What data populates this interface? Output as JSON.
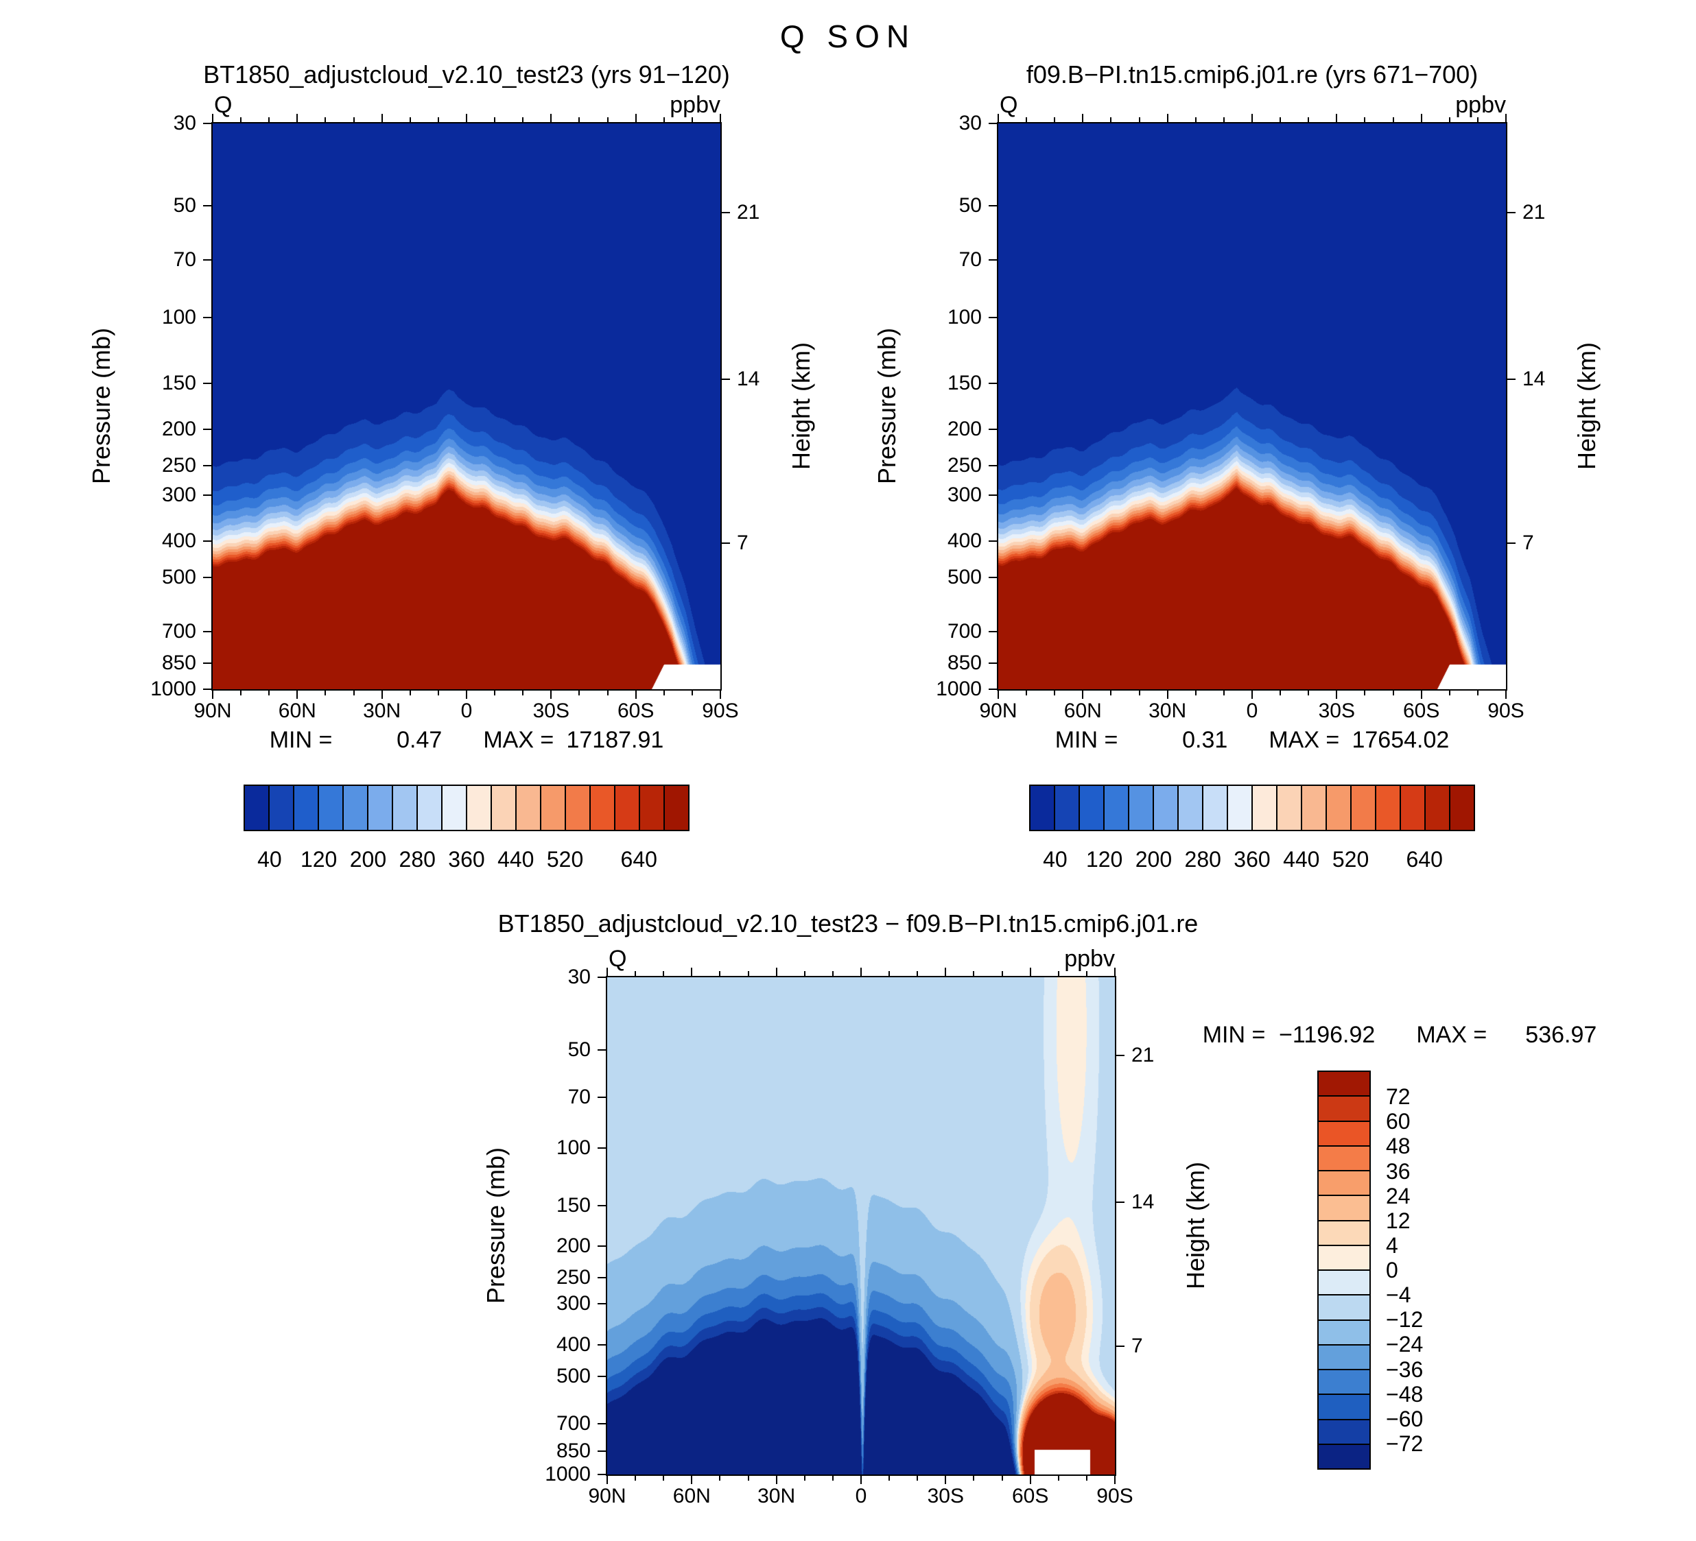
{
  "page": {
    "title": "Q SON"
  },
  "axes_shared": {
    "pressure_label": "Pressure (mb)",
    "height_label": "Height (km)",
    "field_label": "Q",
    "units_label": "ppbv",
    "pressure_ticks": [
      "30",
      "50",
      "70",
      "100",
      "150",
      "200",
      "250",
      "300",
      "400",
      "500",
      "700",
      "850",
      "1000"
    ],
    "height_ticks": [
      {
        "v": "21",
        "pf": 0.157
      },
      {
        "v": "14",
        "pf": 0.452
      },
      {
        "v": "7",
        "pf": 0.742
      }
    ],
    "lat_ticks": [
      "90N",
      "60N",
      "30N",
      "0",
      "30S",
      "60S",
      "90S"
    ]
  },
  "palettes": {
    "q": [
      "#0a2a9c",
      "#1544b4",
      "#1f5ecb",
      "#3578d8",
      "#5592e2",
      "#7bacec",
      "#a2c6f2",
      "#c8def8",
      "#e8f1fb",
      "#fdeada",
      "#fbd3b6",
      "#f9b891",
      "#f69a6a",
      "#f27b49",
      "#e95828",
      "#d63b16",
      "#b82507",
      "#a01601"
    ],
    "diff": [
      "#0b2384",
      "#143fa6",
      "#1f5fc0",
      "#3c7fd0",
      "#63a0dc",
      "#8fbfe8",
      "#bcd9f1",
      "#dcebf7",
      "#fdeedd",
      "#fcd9b8",
      "#fbbe92",
      "#f89e6b",
      "#f47c48",
      "#ea5526",
      "#cc3914",
      "#a11803"
    ]
  },
  "chart_data": [
    {
      "type": "filled-contour",
      "position": "top-left",
      "title": "BT1850_adjustcloud_v2.10_test23 (yrs 91−120)",
      "field_label": "Q",
      "units": "ppbv",
      "x_axis": {
        "ticks": [
          "90N",
          "60N",
          "30N",
          "0",
          "30S",
          "60S",
          "90S"
        ]
      },
      "y_axis": {
        "label": "Pressure (mb)",
        "scale": "log",
        "range": [
          30,
          1000
        ],
        "ticks": [
          30,
          50,
          70,
          100,
          150,
          200,
          250,
          300,
          400,
          500,
          700,
          850,
          1000
        ]
      },
      "y2_axis": {
        "label": "Height (km)",
        "ticks": [
          21,
          14,
          7
        ]
      },
      "stats": {
        "min_label": "MIN =",
        "min": "0.47",
        "max_label": "MAX =",
        "max": "17187.91"
      },
      "colorbar": {
        "orientation": "horizontal",
        "levels": [
          40,
          80,
          120,
          160,
          200,
          240,
          280,
          320,
          360,
          400,
          440,
          480,
          520,
          560,
          600,
          640,
          680
        ],
        "labels": [
          {
            "text": "40",
            "i": 0
          },
          {
            "text": "120",
            "i": 2
          },
          {
            "text": "200",
            "i": 4
          },
          {
            "text": "280",
            "i": 6
          },
          {
            "text": "360",
            "i": 8
          },
          {
            "text": "440",
            "i": 10
          },
          {
            "text": "520",
            "i": 12
          },
          {
            "text": "640",
            "i": 15
          }
        ]
      },
      "approx_red_top_boundary_pf": [
        [
          0,
          0.78
        ],
        [
          0.09,
          0.768
        ],
        [
          0.167,
          0.752
        ],
        [
          0.24,
          0.726
        ],
        [
          0.3,
          0.706
        ],
        [
          0.33,
          0.702
        ],
        [
          0.37,
          0.696
        ],
        [
          0.41,
          0.69
        ],
        [
          0.44,
          0.676
        ],
        [
          0.465,
          0.649
        ],
        [
          0.475,
          0.646
        ],
        [
          0.5,
          0.67
        ],
        [
          0.55,
          0.696
        ],
        [
          0.6,
          0.712
        ],
        [
          0.667,
          0.734
        ],
        [
          0.72,
          0.752
        ],
        [
          0.78,
          0.782
        ],
        [
          0.83,
          0.818
        ],
        [
          0.87,
          0.858
        ],
        [
          0.905,
          0.918
        ],
        [
          0.932,
          0.998
        ],
        [
          0.96,
          1.1
        ],
        [
          1.0,
          1.24
        ]
      ]
    },
    {
      "type": "filled-contour",
      "position": "top-right",
      "title": "f09.B−PI.tn15.cmip6.j01.re (yrs 671−700)",
      "field_label": "Q",
      "units": "ppbv",
      "x_axis": {
        "ticks": [
          "90N",
          "60N",
          "30N",
          "0",
          "30S",
          "60S",
          "90S"
        ]
      },
      "y_axis": {
        "label": "Pressure (mb)",
        "scale": "log",
        "range": [
          30,
          1000
        ],
        "ticks": [
          30,
          50,
          70,
          100,
          150,
          200,
          250,
          300,
          400,
          500,
          700,
          850,
          1000
        ]
      },
      "y2_axis": {
        "label": "Height (km)",
        "ticks": [
          21,
          14,
          7
        ]
      },
      "stats": {
        "min_label": "MIN =",
        "min": "0.31",
        "max_label": "MAX =",
        "max": "17654.02"
      },
      "colorbar": {
        "orientation": "horizontal",
        "levels": [
          40,
          80,
          120,
          160,
          200,
          240,
          280,
          320,
          360,
          400,
          440,
          480,
          520,
          560,
          600,
          640,
          680
        ],
        "labels": [
          {
            "text": "40",
            "i": 0
          },
          {
            "text": "120",
            "i": 2
          },
          {
            "text": "200",
            "i": 4
          },
          {
            "text": "280",
            "i": 6
          },
          {
            "text": "360",
            "i": 8
          },
          {
            "text": "440",
            "i": 10
          },
          {
            "text": "520",
            "i": 12
          },
          {
            "text": "640",
            "i": 15
          }
        ]
      },
      "approx_red_top_boundary_pf": [
        [
          0,
          0.778
        ],
        [
          0.09,
          0.766
        ],
        [
          0.167,
          0.75
        ],
        [
          0.24,
          0.722
        ],
        [
          0.3,
          0.705
        ],
        [
          0.34,
          0.7
        ],
        [
          0.38,
          0.69
        ],
        [
          0.42,
          0.682
        ],
        [
          0.455,
          0.662
        ],
        [
          0.47,
          0.642
        ],
        [
          0.485,
          0.65
        ],
        [
          0.52,
          0.676
        ],
        [
          0.57,
          0.7
        ],
        [
          0.63,
          0.718
        ],
        [
          0.7,
          0.742
        ],
        [
          0.76,
          0.77
        ],
        [
          0.82,
          0.806
        ],
        [
          0.865,
          0.846
        ],
        [
          0.9,
          0.904
        ],
        [
          0.93,
          0.985
        ],
        [
          0.955,
          1.08
        ],
        [
          1.0,
          1.22
        ]
      ]
    },
    {
      "type": "filled-contour-difference",
      "position": "bottom",
      "title": "BT1850_adjustcloud_v2.10_test23 − f09.B−PI.tn15.cmip6.j01.re",
      "field_label": "Q",
      "units": "ppbv",
      "x_axis": {
        "ticks": [
          "90N",
          "60N",
          "30N",
          "0",
          "30S",
          "60S",
          "90S"
        ]
      },
      "y_axis": {
        "label": "Pressure (mb)",
        "scale": "log",
        "range": [
          30,
          1000
        ],
        "ticks": [
          30,
          50,
          70,
          100,
          150,
          200,
          250,
          300,
          400,
          500,
          700,
          850,
          1000
        ]
      },
      "y2_axis": {
        "label": "Height (km)",
        "ticks": [
          21,
          14,
          7
        ]
      },
      "stats": {
        "min_label": "MIN =",
        "min": "−1196.92",
        "max_label": "MAX =",
        "max": "536.97"
      },
      "colorbar": {
        "orientation": "vertical",
        "levels": [
          -72,
          -60,
          -48,
          -36,
          -24,
          -12,
          -4,
          0,
          4,
          12,
          24,
          36,
          48,
          60,
          72
        ],
        "labels_top_to_bottom": [
          "72",
          "60",
          "48",
          "36",
          "24",
          "12",
          "4",
          "0",
          "−4",
          "−12",
          "−24",
          "−36",
          "−48",
          "−60",
          "−72"
        ]
      },
      "render_params": {
        "base": -7,
        "plume": {
          "amp": 1300,
          "t0": 0.38,
          "tw": 0.3,
          "cut_t": 0.78,
          "cut_w": 0.045,
          "k": 9.1,
          "top": 1.02
        },
        "slit": {
          "t0": 0.503,
          "tw": 0.011,
          "depth": 0.95
        },
        "pos": [
          {
            "amp": 850,
            "t0": 0.895,
            "tw": 0.055,
            "p0": 0.97,
            "pw": 0.085
          },
          {
            "amp": 26,
            "t0": 0.885,
            "tw": 0.06,
            "p0": 0.68,
            "pw": 0.13
          },
          {
            "amp": 10,
            "t0": 0.915,
            "tw": 0.05,
            "p0": 0.1,
            "pw": 0.45
          },
          {
            "amp": 700,
            "t0": 0.985,
            "tw": 0.03,
            "p0": 0.98,
            "pw": 0.06
          }
        ]
      }
    }
  ]
}
